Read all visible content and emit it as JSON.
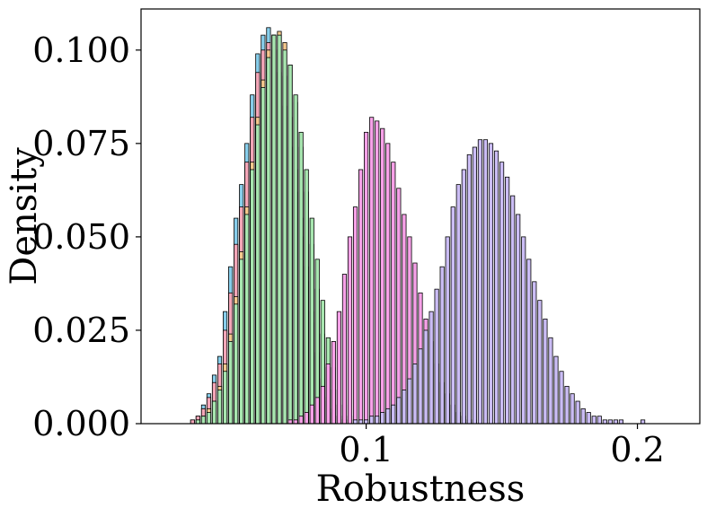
{
  "chart_data": {
    "type": "bar",
    "title": "",
    "xlabel": "Robustness",
    "ylabel": "Density",
    "xlim": [
      0.017,
      0.223
    ],
    "ylim": [
      0,
      0.111
    ],
    "xticks": [
      0.1,
      0.2
    ],
    "xtick_labels": [
      "0.1",
      "0.2"
    ],
    "yticks": [
      0,
      0.025,
      0.05,
      0.075,
      0.1
    ],
    "ytick_labels": [
      "0.000",
      "0.025",
      "0.050",
      "0.075",
      "0.100"
    ],
    "grid": false,
    "legend": "none",
    "bin_width": 0.002,
    "series": [
      {
        "color": "#87CEEB",
        "mean": 0.064,
        "sd": 0.0085,
        "x": [
          0.034,
          0.036,
          0.038,
          0.04,
          0.042,
          0.044,
          0.046,
          0.048,
          0.05,
          0.052,
          0.054,
          0.056,
          0.058,
          0.06,
          0.062,
          0.064,
          0.066,
          0.068,
          0.07,
          0.072,
          0.074,
          0.076,
          0.078,
          0.08,
          0.082,
          0.084,
          0.086,
          0.088,
          0.09,
          0.092,
          0.094
        ],
        "values": [
          0.0,
          0.001,
          0.002,
          0.005,
          0.008,
          0.013,
          0.018,
          0.03,
          0.042,
          0.055,
          0.064,
          0.075,
          0.088,
          0.099,
          0.104,
          0.106,
          0.104,
          0.1,
          0.093,
          0.082,
          0.068,
          0.055,
          0.042,
          0.03,
          0.019,
          0.012,
          0.007,
          0.004,
          0.002,
          0.001,
          0.0
        ]
      },
      {
        "color": "#F4A6B8",
        "mean": 0.064,
        "sd": 0.0085,
        "x": [
          0.034,
          0.036,
          0.038,
          0.04,
          0.042,
          0.044,
          0.046,
          0.048,
          0.05,
          0.052,
          0.054,
          0.056,
          0.058,
          0.06,
          0.062,
          0.064,
          0.066,
          0.068,
          0.07,
          0.072,
          0.074,
          0.076,
          0.078,
          0.08,
          0.082,
          0.084,
          0.086,
          0.088,
          0.09,
          0.092
        ],
        "values": [
          0.0,
          0.001,
          0.002,
          0.004,
          0.007,
          0.011,
          0.016,
          0.025,
          0.035,
          0.048,
          0.058,
          0.07,
          0.082,
          0.094,
          0.1,
          0.102,
          0.1,
          0.094,
          0.085,
          0.074,
          0.062,
          0.05,
          0.038,
          0.027,
          0.018,
          0.011,
          0.006,
          0.003,
          0.002,
          0.001
        ]
      },
      {
        "color": "#F5C98E",
        "mean": 0.067,
        "sd": 0.0085,
        "x": [
          0.036,
          0.038,
          0.04,
          0.042,
          0.044,
          0.046,
          0.048,
          0.05,
          0.052,
          0.054,
          0.056,
          0.058,
          0.06,
          0.062,
          0.064,
          0.066,
          0.068,
          0.07,
          0.072,
          0.074,
          0.076,
          0.078,
          0.08,
          0.082,
          0.084,
          0.086,
          0.088,
          0.09,
          0.092,
          0.094
        ],
        "values": [
          0.0,
          0.001,
          0.002,
          0.004,
          0.006,
          0.01,
          0.016,
          0.024,
          0.034,
          0.046,
          0.058,
          0.07,
          0.082,
          0.092,
          0.1,
          0.104,
          0.105,
          0.102,
          0.096,
          0.086,
          0.074,
          0.062,
          0.048,
          0.036,
          0.024,
          0.015,
          0.009,
          0.005,
          0.002,
          0.001
        ]
      },
      {
        "color": "#A8E6B0",
        "mean": 0.068,
        "sd": 0.0085,
        "x": [
          0.038,
          0.04,
          0.042,
          0.044,
          0.046,
          0.048,
          0.05,
          0.052,
          0.054,
          0.056,
          0.058,
          0.06,
          0.062,
          0.064,
          0.066,
          0.068,
          0.07,
          0.072,
          0.074,
          0.076,
          0.078,
          0.08,
          0.082,
          0.084,
          0.086,
          0.088,
          0.09,
          0.092,
          0.094,
          0.096
        ],
        "values": [
          0.001,
          0.002,
          0.003,
          0.006,
          0.009,
          0.014,
          0.022,
          0.032,
          0.044,
          0.056,
          0.068,
          0.08,
          0.09,
          0.098,
          0.104,
          0.104,
          0.1,
          0.096,
          0.088,
          0.078,
          0.068,
          0.055,
          0.044,
          0.033,
          0.023,
          0.015,
          0.009,
          0.005,
          0.002,
          0.001
        ]
      },
      {
        "color": "#F7A1E8",
        "mean": 0.105,
        "sd": 0.0095,
        "x": [
          0.07,
          0.072,
          0.074,
          0.076,
          0.078,
          0.08,
          0.082,
          0.084,
          0.086,
          0.088,
          0.09,
          0.092,
          0.094,
          0.096,
          0.098,
          0.1,
          0.102,
          0.104,
          0.106,
          0.108,
          0.11,
          0.112,
          0.114,
          0.116,
          0.118,
          0.12,
          0.122,
          0.124,
          0.126,
          0.128,
          0.13,
          0.132,
          0.134,
          0.136,
          0.138,
          0.14,
          0.142
        ],
        "values": [
          0.0,
          0.001,
          0.001,
          0.002,
          0.003,
          0.005,
          0.007,
          0.01,
          0.016,
          0.022,
          0.03,
          0.04,
          0.05,
          0.058,
          0.068,
          0.078,
          0.082,
          0.081,
          0.079,
          0.075,
          0.07,
          0.063,
          0.056,
          0.05,
          0.043,
          0.035,
          0.028,
          0.022,
          0.016,
          0.011,
          0.008,
          0.005,
          0.003,
          0.002,
          0.001,
          0.001,
          0.0
        ]
      },
      {
        "color": "#CBBDF5",
        "mean": 0.145,
        "sd": 0.015,
        "x": [
          0.094,
          0.096,
          0.098,
          0.1,
          0.102,
          0.104,
          0.106,
          0.108,
          0.11,
          0.112,
          0.114,
          0.116,
          0.118,
          0.12,
          0.122,
          0.124,
          0.126,
          0.128,
          0.13,
          0.132,
          0.134,
          0.136,
          0.138,
          0.14,
          0.142,
          0.144,
          0.146,
          0.148,
          0.15,
          0.152,
          0.154,
          0.156,
          0.158,
          0.16,
          0.162,
          0.164,
          0.166,
          0.168,
          0.17,
          0.172,
          0.174,
          0.176,
          0.178,
          0.18,
          0.182,
          0.184,
          0.186,
          0.188,
          0.19,
          0.192,
          0.194,
          0.196,
          0.198,
          0.2,
          0.202,
          0.204,
          0.206
        ],
        "values": [
          0.0,
          0.001,
          0.001,
          0.001,
          0.002,
          0.002,
          0.003,
          0.004,
          0.005,
          0.007,
          0.009,
          0.012,
          0.016,
          0.02,
          0.025,
          0.03,
          0.036,
          0.042,
          0.05,
          0.058,
          0.064,
          0.068,
          0.072,
          0.074,
          0.076,
          0.076,
          0.075,
          0.073,
          0.07,
          0.066,
          0.061,
          0.056,
          0.05,
          0.044,
          0.038,
          0.033,
          0.028,
          0.023,
          0.018,
          0.014,
          0.01,
          0.008,
          0.006,
          0.004,
          0.003,
          0.002,
          0.002,
          0.001,
          0.001,
          0.001,
          0.001,
          0.0,
          0.0,
          0.0,
          0.001,
          0.0,
          0.0
        ]
      }
    ]
  }
}
